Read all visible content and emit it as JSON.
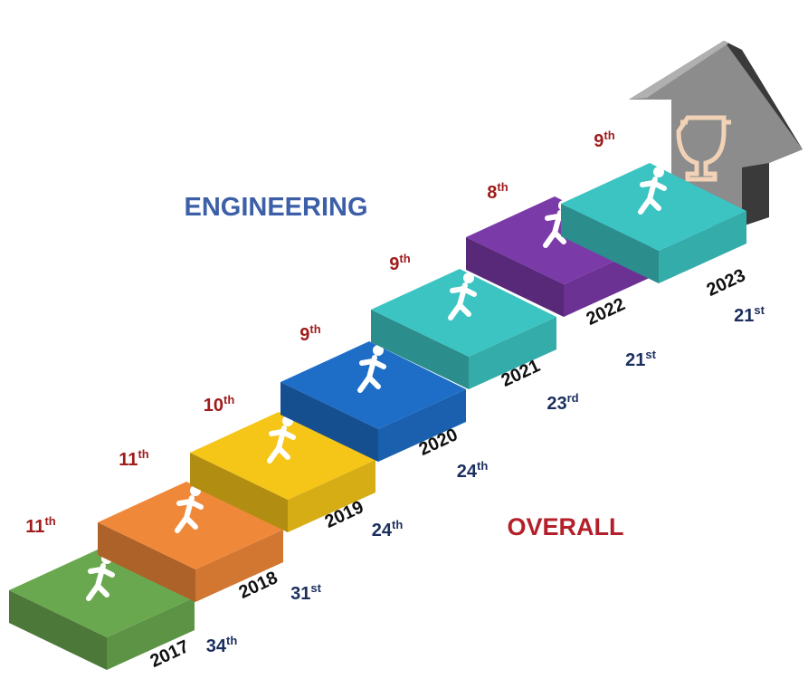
{
  "titles": {
    "engineering": "ENGINEERING",
    "overall": "OVERALL"
  },
  "steps": [
    {
      "year": "2017",
      "engineering": {
        "number": "11",
        "suffix": "th"
      },
      "overall": {
        "number": "34",
        "suffix": "th"
      },
      "color": "#6aa84f"
    },
    {
      "year": "2018",
      "engineering": {
        "number": "11",
        "suffix": "th"
      },
      "overall": {
        "number": "31",
        "suffix": "st"
      },
      "color": "#f0883a"
    },
    {
      "year": "2019",
      "engineering": {
        "number": "10",
        "suffix": "th"
      },
      "overall": {
        "number": "24",
        "suffix": "th"
      },
      "color": "#f5c518"
    },
    {
      "year": "2020",
      "engineering": {
        "number": "9",
        "suffix": "th"
      },
      "overall": {
        "number": "24",
        "suffix": "th"
      },
      "color": "#1e6ec8"
    },
    {
      "year": "2021",
      "engineering": {
        "number": "9",
        "suffix": "th"
      },
      "overall": {
        "number": "23",
        "suffix": "rd"
      },
      "color": "#3cc4c2"
    },
    {
      "year": "2022",
      "engineering": {
        "number": "8",
        "suffix": "th"
      },
      "overall": {
        "number": "21",
        "suffix": "st"
      },
      "color": "#7a3aa8"
    },
    {
      "year": "2023",
      "engineering": {
        "number": "9",
        "suffix": "th"
      },
      "overall": {
        "number": "21",
        "suffix": "st"
      },
      "color": "#3cc4c2"
    }
  ]
}
